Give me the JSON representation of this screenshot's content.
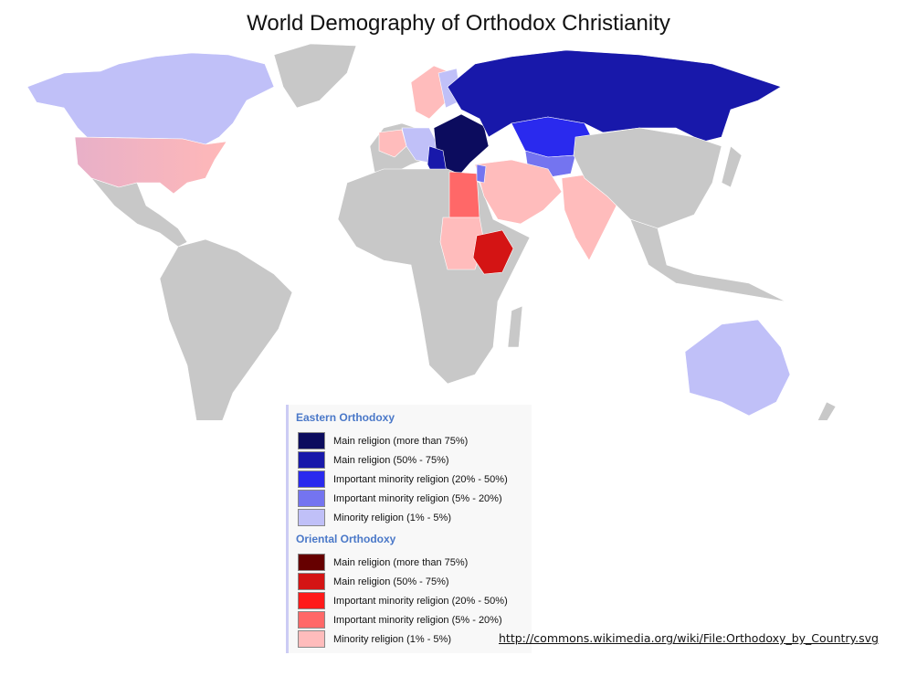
{
  "title": "World Demography of Orthodox Christianity",
  "legend": {
    "eastern": {
      "heading": "Eastern Orthodoxy",
      "items": [
        {
          "label": "Main religion (more than 75%)",
          "color": "#0c0c5e"
        },
        {
          "label": "Main religion (50% - 75%)",
          "color": "#1818aa"
        },
        {
          "label": "Important minority religion (20% - 50%)",
          "color": "#2a2aee"
        },
        {
          "label": "Important minority religion (5% - 20%)",
          "color": "#7474f0"
        },
        {
          "label": "Minority religion (1% - 5%)",
          "color": "#c0c0f8"
        }
      ]
    },
    "oriental": {
      "heading": "Oriental Orthodoxy",
      "items": [
        {
          "label": "Main religion (more than 75%)",
          "color": "#660000"
        },
        {
          "label": "Main religion (50% - 75%)",
          "color": "#d41414"
        },
        {
          "label": "Important minority religion (20% - 50%)",
          "color": "#ff1a1a"
        },
        {
          "label": "Important minority religion (5% - 20%)",
          "color": "#ff6868"
        },
        {
          "label": "Minority religion (1% - 5%)",
          "color": "#ffbcbc"
        }
      ]
    }
  },
  "map": {
    "land_color": "#c8c8c8"
  },
  "source_link": "http://commons.wikimedia.org/wiki/File:Orthodoxy_by_Country.svg"
}
